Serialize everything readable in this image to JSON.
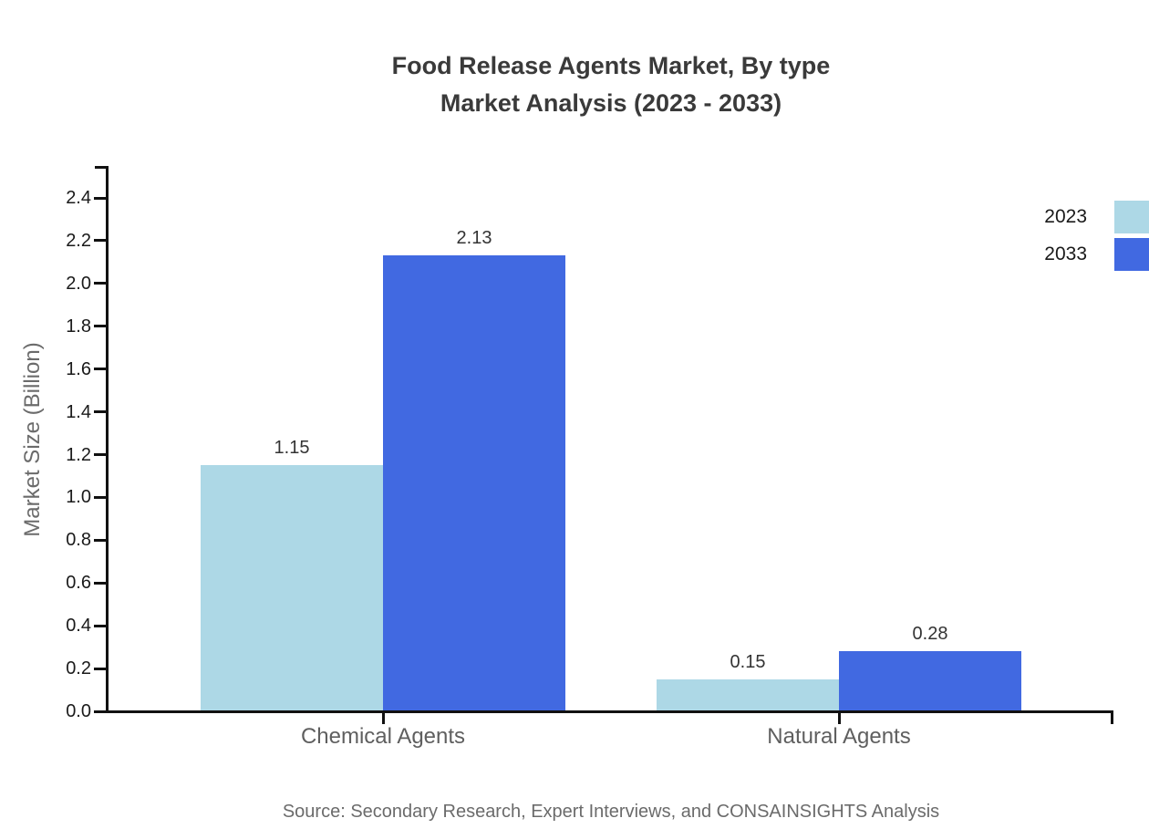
{
  "header": {
    "title_line1": "Food Release Agents Market, By type",
    "title_line2": "Market Analysis (2023 - 2033)"
  },
  "source_note": "Source: Secondary Research, Expert Interviews, and CONSAINSIGHTS Analysis",
  "colors": {
    "series_2023": "#ADD8E6",
    "series_2033": "#4169E1",
    "axis": "#111111",
    "title_text": "#3a3a3a",
    "tick_text": "#1a1a1a",
    "muted_text": "#6b6b6b",
    "value_text": "#333333"
  },
  "legend": {
    "position": "right",
    "items": [
      {
        "label": "2023",
        "color": "#ADD8E6"
      },
      {
        "label": "2033",
        "color": "#4169E1"
      }
    ]
  },
  "chart_data": {
    "type": "bar",
    "title": "Food Release Agents Market, By type Market Analysis (2023 - 2033)",
    "categories": [
      "Chemical Agents",
      "Natural Agents"
    ],
    "series": [
      {
        "name": "2023",
        "color": "#ADD8E6",
        "values": [
          1.15,
          0.15
        ]
      },
      {
        "name": "2033",
        "color": "#4169E1",
        "values": [
          2.13,
          0.28
        ]
      }
    ],
    "xlabel": "",
    "ylabel": "Market Size (Billion)",
    "ylim": [
      0.0,
      2.5
    ],
    "yticks": [
      0.0,
      0.2,
      0.4,
      0.6,
      0.8,
      1.0,
      1.2,
      1.4,
      1.6,
      1.8,
      2.0,
      2.2,
      2.4
    ],
    "grid": false,
    "legend_position": "right",
    "value_labels": true,
    "value_label_format": "0.00",
    "tick_label_format": "0.0"
  }
}
